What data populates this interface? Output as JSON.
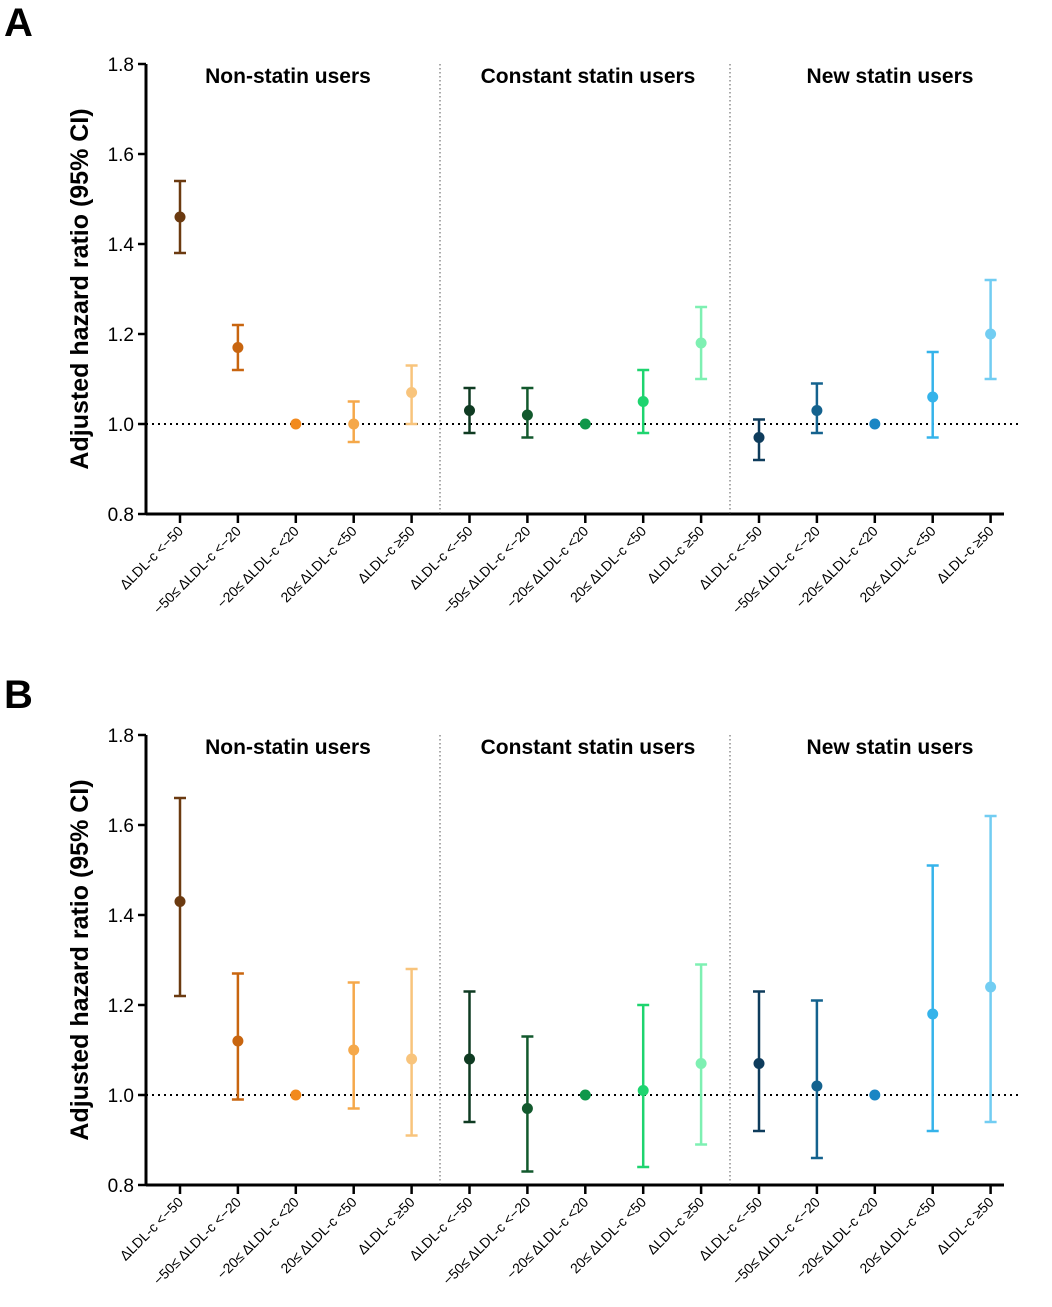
{
  "chart_data": [
    {
      "panel": "A",
      "type": "scatter",
      "subtype": "forest-plot-with-error-bars",
      "ylabel": "Adjusted hazard ratio (95% CI)",
      "ylim": [
        0.8,
        1.8
      ],
      "yticks": [
        "0.8",
        "1.0",
        "1.2",
        "1.4",
        "1.6",
        "1.8"
      ],
      "reference_line": 1.0,
      "groups": [
        {
          "title": "Non-statin users",
          "points": [
            {
              "label": "ΔLDL-c <−50",
              "hr": 1.46,
              "lo": 1.38,
              "hi": 1.54,
              "color": "#6B3A10"
            },
            {
              "label": "−50≤ ΔLDL-c <−20",
              "hr": 1.17,
              "lo": 1.12,
              "hi": 1.22,
              "color": "#C8650F"
            },
            {
              "label": "−20≤ ΔLDL-c <20",
              "hr": 1.0,
              "lo": 1.0,
              "hi": 1.0,
              "color": "#F28A1E"
            },
            {
              "label": "20≤ ΔLDL-c <50",
              "hr": 1.0,
              "lo": 0.96,
              "hi": 1.05,
              "color": "#F5A84A"
            },
            {
              "label": "ΔLDL-c ≥50",
              "hr": 1.07,
              "lo": 1.0,
              "hi": 1.13,
              "color": "#F8C47C"
            }
          ]
        },
        {
          "title": "Constant statin users",
          "points": [
            {
              "label": "ΔLDL-c <−50",
              "hr": 1.03,
              "lo": 0.98,
              "hi": 1.08,
              "color": "#0F3B22"
            },
            {
              "label": "−50≤ ΔLDL-c <−20",
              "hr": 1.02,
              "lo": 0.97,
              "hi": 1.08,
              "color": "#12592D"
            },
            {
              "label": "−20≤ ΔLDL-c <20",
              "hr": 1.0,
              "lo": 1.0,
              "hi": 1.0,
              "color": "#10974A"
            },
            {
              "label": "20≤ ΔLDL-c <50",
              "hr": 1.05,
              "lo": 0.98,
              "hi": 1.12,
              "color": "#1ED46F"
            },
            {
              "label": "ΔLDL-c ≥50",
              "hr": 1.18,
              "lo": 1.1,
              "hi": 1.26,
              "color": "#7EF0B2"
            }
          ]
        },
        {
          "title": "New statin users",
          "points": [
            {
              "label": "ΔLDL-c <−50",
              "hr": 0.97,
              "lo": 0.92,
              "hi": 1.01,
              "color": "#0E3C5C"
            },
            {
              "label": "−50≤ ΔLDL-c <−20",
              "hr": 1.03,
              "lo": 0.98,
              "hi": 1.09,
              "color": "#14628E"
            },
            {
              "label": "−20≤ ΔLDL-c <20",
              "hr": 1.0,
              "lo": 1.0,
              "hi": 1.0,
              "color": "#1A86C4"
            },
            {
              "label": "20≤ ΔLDL-c <50",
              "hr": 1.06,
              "lo": 0.97,
              "hi": 1.16,
              "color": "#35B3EA"
            },
            {
              "label": "ΔLDL-c ≥50",
              "hr": 1.2,
              "lo": 1.1,
              "hi": 1.32,
              "color": "#72CDF2"
            }
          ]
        }
      ]
    },
    {
      "panel": "B",
      "type": "scatter",
      "subtype": "forest-plot-with-error-bars",
      "ylabel": "Adjusted hazard ratio (95% CI)",
      "ylim": [
        0.8,
        1.8
      ],
      "yticks": [
        "0.8",
        "1.0",
        "1.2",
        "1.4",
        "1.6",
        "1.8"
      ],
      "reference_line": 1.0,
      "groups": [
        {
          "title": "Non-statin users",
          "points": [
            {
              "label": "ΔLDL-c <−50",
              "hr": 1.43,
              "lo": 1.22,
              "hi": 1.66,
              "color": "#6B3A10"
            },
            {
              "label": "−50≤ ΔLDL-c <−20",
              "hr": 1.12,
              "lo": 0.99,
              "hi": 1.27,
              "color": "#C8650F"
            },
            {
              "label": "−20≤ ΔLDL-c <20",
              "hr": 1.0,
              "lo": 1.0,
              "hi": 1.0,
              "color": "#F28A1E"
            },
            {
              "label": "20≤ ΔLDL-c <50",
              "hr": 1.1,
              "lo": 0.97,
              "hi": 1.25,
              "color": "#F5A84A"
            },
            {
              "label": "ΔLDL-c ≥50",
              "hr": 1.08,
              "lo": 0.91,
              "hi": 1.28,
              "color": "#F8C47C"
            }
          ]
        },
        {
          "title": "Constant statin users",
          "points": [
            {
              "label": "ΔLDL-c <−50",
              "hr": 1.08,
              "lo": 0.94,
              "hi": 1.23,
              "color": "#0F3B22"
            },
            {
              "label": "−50≤ ΔLDL-c <−20",
              "hr": 0.97,
              "lo": 0.83,
              "hi": 1.13,
              "color": "#12592D"
            },
            {
              "label": "−20≤ ΔLDL-c <20",
              "hr": 1.0,
              "lo": 1.0,
              "hi": 1.0,
              "color": "#10974A"
            },
            {
              "label": "20≤ ΔLDL-c <50",
              "hr": 1.01,
              "lo": 0.84,
              "hi": 1.2,
              "color": "#1ED46F"
            },
            {
              "label": "ΔLDL-c ≥50",
              "hr": 1.07,
              "lo": 0.89,
              "hi": 1.29,
              "color": "#7EF0B2"
            }
          ]
        },
        {
          "title": "New statin users",
          "points": [
            {
              "label": "ΔLDL-c <−50",
              "hr": 1.07,
              "lo": 0.92,
              "hi": 1.23,
              "color": "#0E3C5C"
            },
            {
              "label": "−50≤ ΔLDL-c <−20",
              "hr": 1.02,
              "lo": 0.86,
              "hi": 1.21,
              "color": "#14628E"
            },
            {
              "label": "−20≤ ΔLDL-c <20",
              "hr": 1.0,
              "lo": 1.0,
              "hi": 1.0,
              "color": "#1A86C4"
            },
            {
              "label": "20≤ ΔLDL-c <50",
              "hr": 1.18,
              "lo": 0.92,
              "hi": 1.51,
              "color": "#35B3EA"
            },
            {
              "label": "ΔLDL-c ≥50",
              "hr": 1.24,
              "lo": 0.94,
              "hi": 1.62,
              "color": "#72CDF2"
            }
          ]
        }
      ]
    }
  ]
}
